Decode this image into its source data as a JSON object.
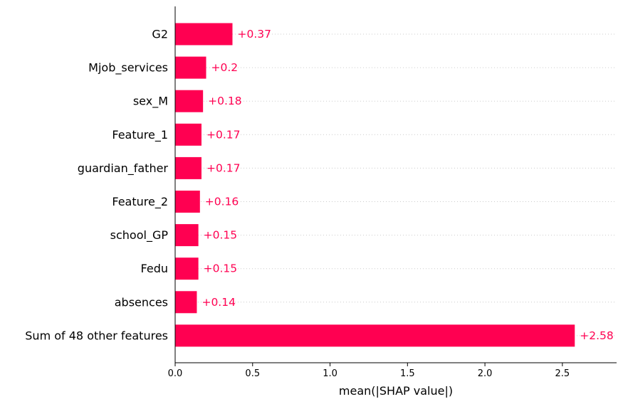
{
  "chart_data": {
    "type": "bar",
    "orientation": "horizontal",
    "title": "",
    "xlabel": "mean(|SHAP value|)",
    "ylabel": "",
    "xlim": [
      0,
      2.85
    ],
    "xticks": [
      0.0,
      0.5,
      1.0,
      1.5,
      2.0,
      2.5
    ],
    "xtick_labels": [
      "0.0",
      "0.5",
      "1.0",
      "1.5",
      "2.0",
      "2.5"
    ],
    "grid": "dotted horizontal guide lines",
    "bar_color": "#ff0051",
    "label_color": "#ff0051",
    "categories": [
      "G2",
      "Mjob_services",
      "sex_M",
      "Feature_1",
      "guardian_father",
      "Feature_2",
      "school_GP",
      "Fedu",
      "absences",
      "Sum of 48 other features"
    ],
    "values": [
      0.37,
      0.2,
      0.18,
      0.17,
      0.17,
      0.16,
      0.15,
      0.15,
      0.14,
      2.58
    ],
    "value_labels": [
      "+0.37",
      "+0.2",
      "+0.18",
      "+0.17",
      "+0.17",
      "+0.16",
      "+0.15",
      "+0.15",
      "+0.14",
      "+2.58"
    ]
  }
}
